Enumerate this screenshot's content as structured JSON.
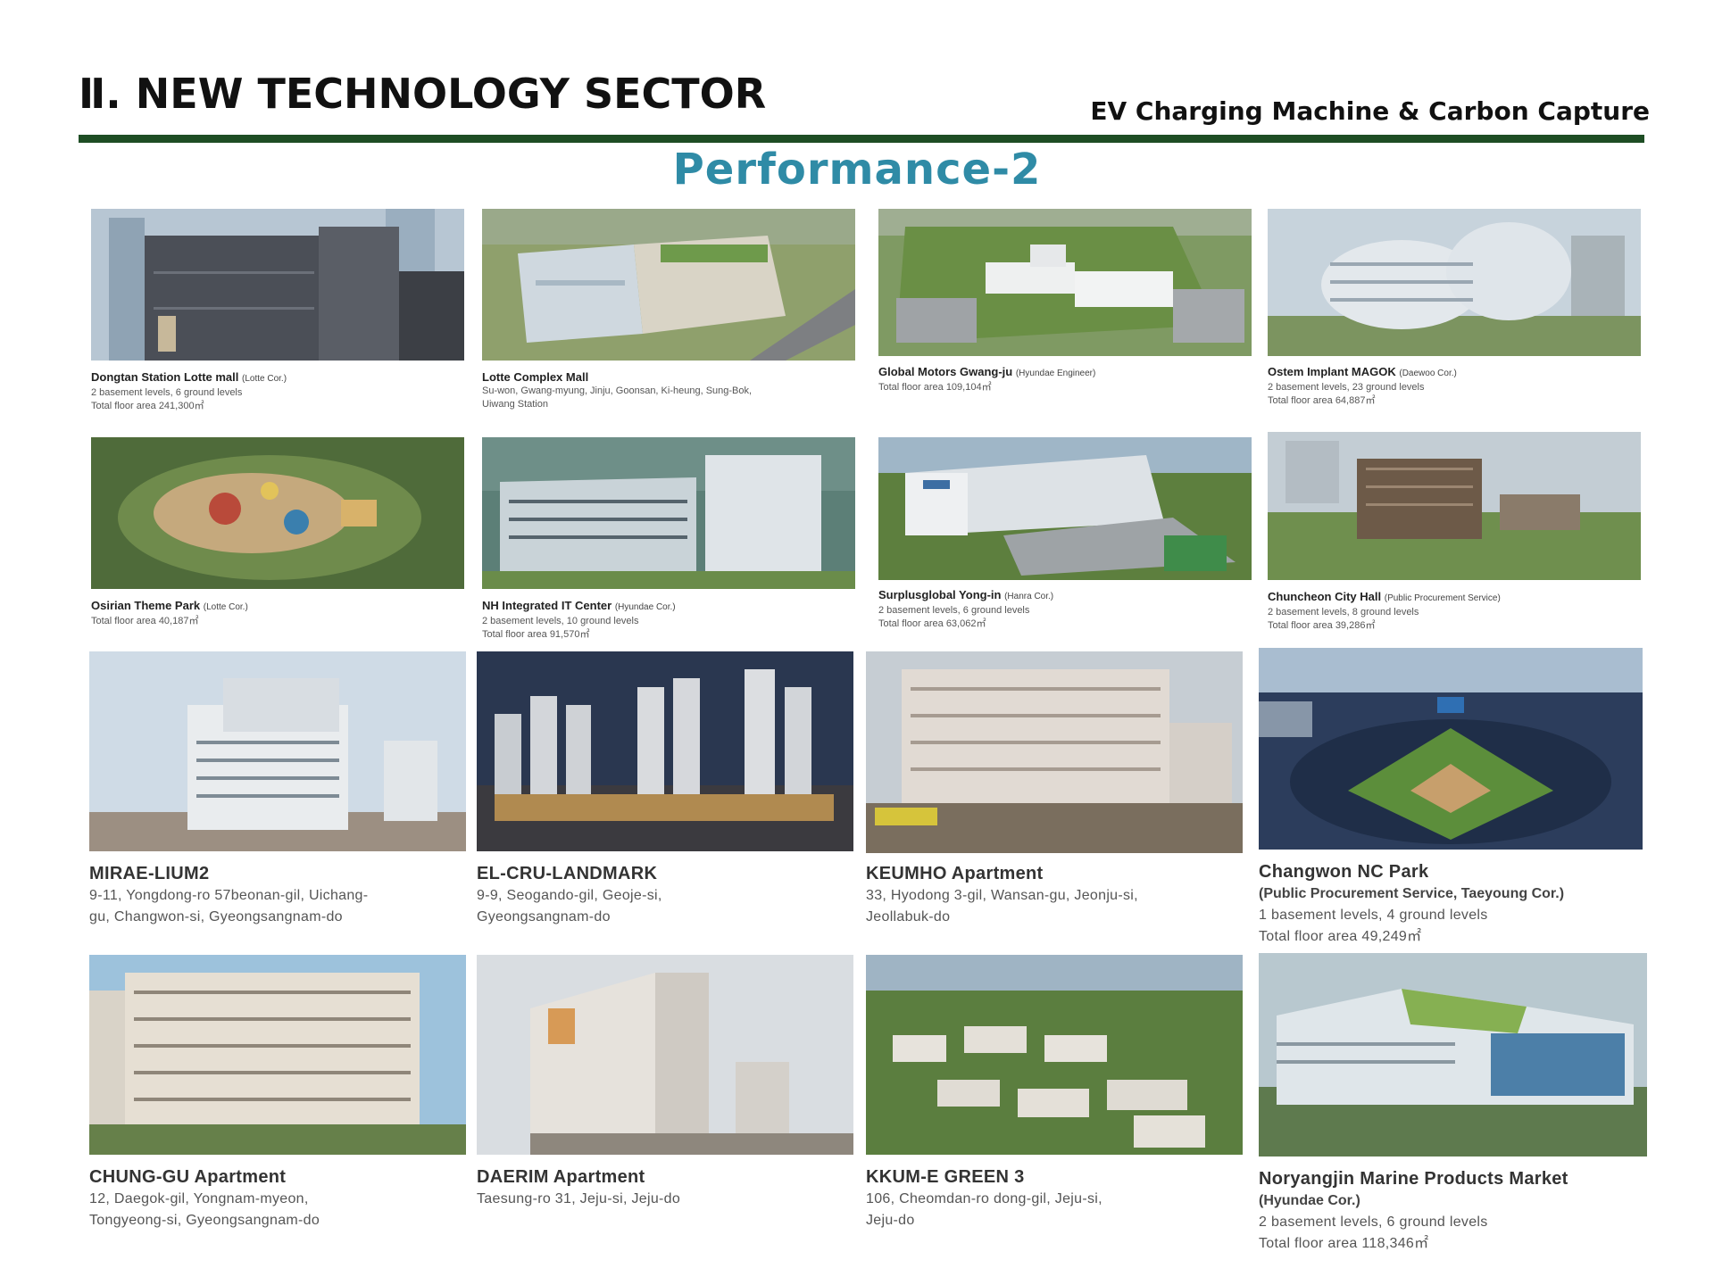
{
  "header": {
    "title": "Ⅱ. NEW TECHNOLOGY SECTOR",
    "subtitle": "EV Charging Machine & Carbon Capture",
    "section": "Performance-2"
  },
  "projects": [
    {
      "name": "Dongtan Station Lotte mall",
      "tag": "(Lotte Cor.)",
      "lines": [
        "2 basement levels, 6 ground levels",
        "Total floor area 241,300㎡"
      ]
    },
    {
      "name": "Lotte Complex Mall",
      "tag": "",
      "lines": [
        "Su-won, Gwang-myung, Jinju, Goonsan, Ki-heung, Sung-Bok,",
        "Uiwang Station"
      ]
    },
    {
      "name": "Global Motors Gwang-ju",
      "tag": "(Hyundae Engineer)",
      "lines": [
        "Total floor area 109,104㎡"
      ]
    },
    {
      "name": "Ostem Implant MAGOK",
      "tag": "(Daewoo Cor.)",
      "lines": [
        "2 basement levels, 23 ground levels",
        "Total floor area 64,887㎡"
      ]
    },
    {
      "name": "Osirian Theme Park",
      "tag": "(Lotte Cor.)",
      "lines": [
        "Total floor area 40,187㎡"
      ]
    },
    {
      "name": "NH Integrated IT Center",
      "tag": "(Hyundae Cor.)",
      "lines": [
        "2 basement levels, 10 ground levels",
        "Total floor area 91,570㎡"
      ]
    },
    {
      "name": "Surplusglobal Yong-in",
      "tag": "(Hanra Cor.)",
      "lines": [
        "2 basement levels, 6 ground levels",
        "Total floor area 63,062㎡"
      ]
    },
    {
      "name": "Chuncheon City Hall",
      "tag": "(Public Procurement Service)",
      "lines": [
        "2 basement levels, 8 ground levels",
        "Total floor area 39,286㎡"
      ]
    },
    {
      "name": "MIRAE-LIUM2",
      "sub": "",
      "lines": [
        "9-11, Yongdong-ro 57beonan-gil, Uichang-",
        "gu, Changwon-si, Gyeongsangnam-do"
      ]
    },
    {
      "name": "EL-CRU-LANDMARK",
      "sub": "",
      "lines": [
        "9-9, Seogando-gil, Geoje-si,",
        "Gyeongsangnam-do"
      ]
    },
    {
      "name": "KEUMHO Apartment",
      "sub": "",
      "lines": [
        "33, Hyodong 3-gil, Wansan-gu, Jeonju-si,",
        "Jeollabuk-do"
      ]
    },
    {
      "name": "Changwon NC Park",
      "sub": "(Public Procurement Service, Taeyoung Cor.)",
      "lines": [
        "1 basement levels, 4 ground levels",
        "Total floor area 49,249㎡"
      ]
    },
    {
      "name": "CHUNG-GU Apartment",
      "sub": "",
      "lines": [
        "12, Daegok-gil, Yongnam-myeon,",
        "Tongyeong-si, Gyeongsangnam-do"
      ]
    },
    {
      "name": "DAERIM Apartment",
      "sub": "",
      "lines": [
        "Taesung-ro 31, Jeju-si, Jeju-do"
      ]
    },
    {
      "name": "KKUM-E GREEN 3",
      "sub": "",
      "lines": [
        "106, Cheomdan-ro dong-gil, Jeju-si,",
        "Jeju-do"
      ]
    },
    {
      "name": "Noryangjin Marine Products Market",
      "sub": "(Hyundae Cor.)",
      "lines": [
        "2 basement levels, 6 ground levels",
        "Total floor area 118,346㎡"
      ]
    }
  ]
}
